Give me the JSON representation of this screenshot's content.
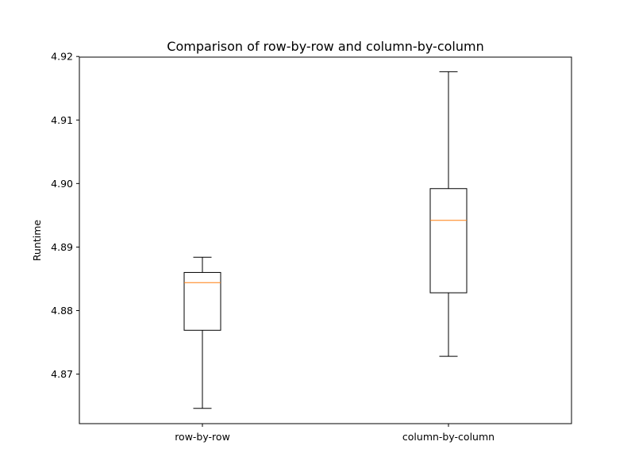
{
  "chart_data": {
    "type": "box",
    "title": "Comparison of row-by-row and column-by-column",
    "xlabel": "",
    "ylabel": "Runtime",
    "ylim": [
      4.8622,
      4.9199
    ],
    "yticks": [
      4.87,
      4.88,
      4.89,
      4.9,
      4.91,
      4.92
    ],
    "ytick_labels": [
      "4.87",
      "4.88",
      "4.89",
      "4.90",
      "4.91",
      "4.92"
    ],
    "grid": false,
    "categories": [
      "row-by-row",
      "column-by-column"
    ],
    "boxes": [
      {
        "category": "row-by-row",
        "whisker_low": 4.8646,
        "q1": 4.8769,
        "median": 4.8844,
        "q3": 4.886,
        "whisker_high": 4.8884
      },
      {
        "category": "column-by-column",
        "whisker_low": 4.8728,
        "q1": 4.8828,
        "median": 4.8942,
        "q3": 4.8992,
        "whisker_high": 4.9176
      }
    ],
    "colors": {
      "box": "#000000",
      "median": "#ff7f0e",
      "axes": "#000000",
      "background": "#ffffff"
    }
  }
}
